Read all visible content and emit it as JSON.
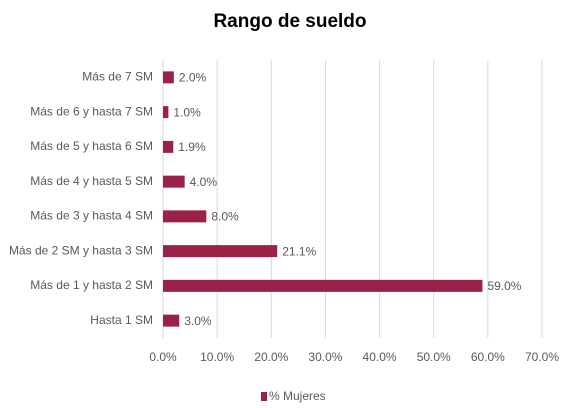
{
  "chart_data": {
    "type": "bar",
    "orientation": "horizontal",
    "title": "Rango de sueldo",
    "categories": [
      "Más de 7 SM",
      "Más de 6 y hasta 7 SM",
      "Más de 5 y hasta 6 SM",
      "Más de 4 y hasta 5 SM",
      "Más de 3 y hasta 4 SM",
      "Más de 2 SM y hasta 3 SM",
      "Más de 1 y hasta 2 SM",
      "Hasta 1 SM"
    ],
    "series": [
      {
        "name": "% Mujeres",
        "color": "#9b2247",
        "values": [
          2.0,
          1.0,
          1.9,
          4.0,
          8.0,
          21.1,
          59.0,
          3.0
        ],
        "value_labels": [
          "2.0%",
          "1.0%",
          "1.9%",
          "4.0%",
          "8.0%",
          "21.1%",
          "59.0%",
          "3.0%"
        ]
      }
    ],
    "xlim": [
      0,
      70
    ],
    "xticks": [
      {
        "value": 0,
        "label": "0.0%"
      },
      {
        "value": 10,
        "label": "10.0%"
      },
      {
        "value": 20,
        "label": "20.0%"
      },
      {
        "value": 30,
        "label": "30.0%"
      },
      {
        "value": 40,
        "label": "40.0%"
      },
      {
        "value": 50,
        "label": "50.0%"
      },
      {
        "value": 60,
        "label": "60.0%"
      },
      {
        "value": 70,
        "label": "70.0%"
      }
    ],
    "grid": true,
    "legend": "bottom"
  }
}
